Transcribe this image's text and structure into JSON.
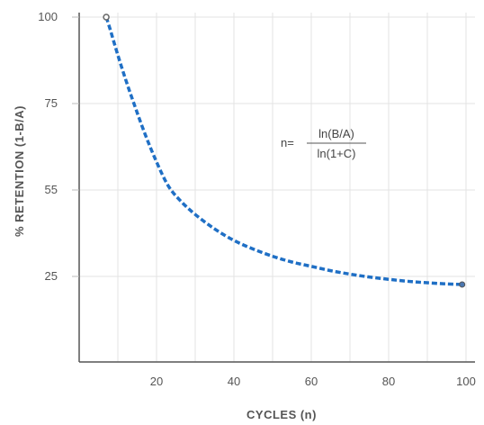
{
  "chart_data": {
    "type": "line",
    "xlabel": "CYCLES (n)",
    "ylabel": "% RETENTION (1-B/A)",
    "x_ticks": [
      20,
      40,
      60,
      80,
      100
    ],
    "y_ticks": [
      25,
      55,
      75,
      100
    ],
    "grid": true,
    "series_color": "#1f6fc5",
    "series_style": "dashed",
    "series": [
      {
        "x": [
          7,
          8,
          10,
          12,
          14,
          17,
          20,
          23,
          26,
          30,
          35,
          40,
          45,
          50,
          55,
          60,
          65,
          70,
          75,
          80,
          85,
          90,
          95,
          99
        ],
        "y": [
          100,
          96.5,
          89,
          82,
          75.5,
          68,
          61.5,
          56,
          51.5,
          46.5,
          41.5,
          37.5,
          34.5,
          32,
          30,
          28.5,
          27,
          25.8,
          24.8,
          24,
          23.3,
          22.8,
          22.4,
          22.2
        ]
      }
    ],
    "annotation": {
      "prefix": "n=",
      "numerator": "ln(B/A)",
      "denominator": "ln(1+C)"
    }
  }
}
